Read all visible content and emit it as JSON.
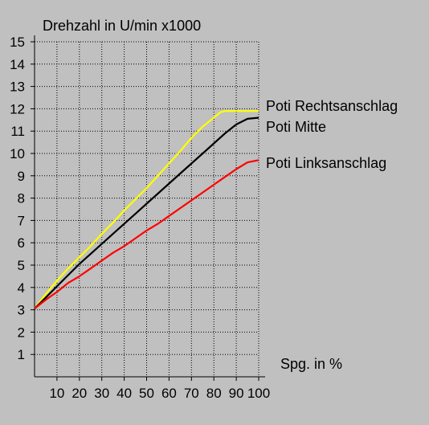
{
  "chart_data": {
    "type": "line",
    "title": "",
    "ylabel": "Drehzahl in U/min x1000",
    "xlabel": "Spg. in %",
    "xlim": [
      0,
      100
    ],
    "ylim": [
      0,
      15
    ],
    "x_ticks": [
      10,
      20,
      30,
      40,
      50,
      60,
      70,
      80,
      90,
      100
    ],
    "y_ticks": [
      1,
      2,
      3,
      4,
      5,
      6,
      7,
      8,
      9,
      10,
      11,
      12,
      13,
      14,
      15
    ],
    "grid": true,
    "series": [
      {
        "name": "Poti Rechtsanschlag",
        "color": "#ffff00",
        "x": [
          0,
          5,
          10,
          15,
          20,
          25,
          30,
          35,
          40,
          45,
          50,
          55,
          60,
          65,
          70,
          75,
          80,
          83,
          85,
          90,
          95,
          100
        ],
        "y": [
          3.05,
          3.7,
          4.3,
          4.85,
          5.35,
          5.85,
          6.4,
          6.9,
          7.45,
          7.95,
          8.45,
          9.0,
          9.55,
          10.1,
          10.7,
          11.2,
          11.6,
          11.85,
          11.9,
          11.9,
          11.9,
          11.9
        ]
      },
      {
        "name": "Poti Mitte",
        "color": "#000000",
        "x": [
          0,
          5,
          10,
          15,
          20,
          25,
          30,
          35,
          40,
          45,
          50,
          55,
          60,
          65,
          70,
          75,
          80,
          85,
          90,
          95,
          100
        ],
        "y": [
          3.05,
          3.55,
          4.05,
          4.55,
          5.05,
          5.5,
          5.95,
          6.4,
          6.85,
          7.3,
          7.75,
          8.2,
          8.65,
          9.1,
          9.55,
          10.0,
          10.45,
          10.9,
          11.3,
          11.55,
          11.6
        ]
      },
      {
        "name": "Poti Linksanschlag",
        "color": "#ff0000",
        "x": [
          0,
          5,
          10,
          15,
          20,
          25,
          30,
          35,
          40,
          45,
          50,
          55,
          60,
          65,
          70,
          75,
          80,
          85,
          90,
          95,
          100
        ],
        "y": [
          3.05,
          3.45,
          3.8,
          4.2,
          4.5,
          4.85,
          5.2,
          5.55,
          5.85,
          6.2,
          6.55,
          6.85,
          7.2,
          7.55,
          7.9,
          8.25,
          8.6,
          8.95,
          9.3,
          9.6,
          9.7
        ]
      }
    ]
  }
}
